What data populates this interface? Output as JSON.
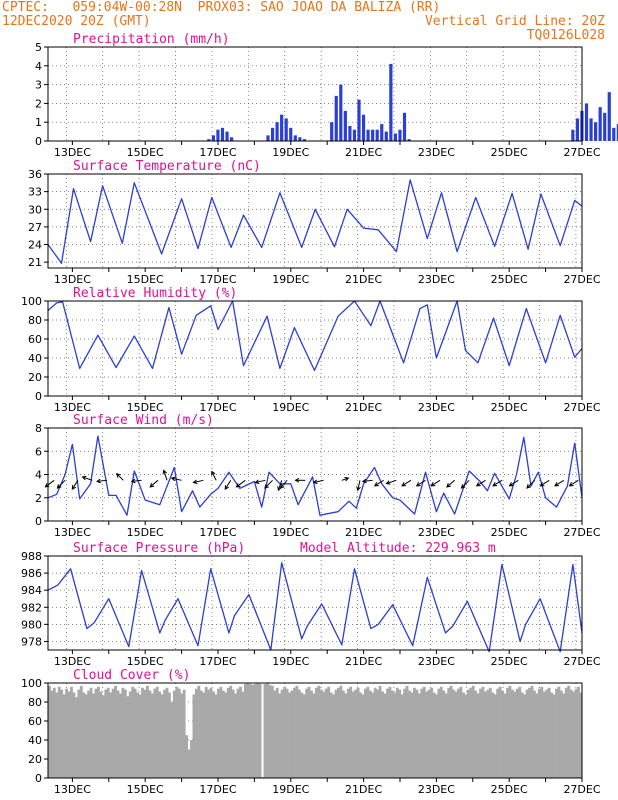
{
  "header": {
    "line1_left": "CPTEC:   059:04W-00:28N  PROX03: SAO JOAO DA BALIZA (RR)",
    "line2_left": "12DEC2020 20Z (GMT)",
    "line2_right": "Vertical Grid Line: 20Z",
    "line3_right": "TQ0126L028"
  },
  "colors": {
    "header": "#e8751a",
    "title": "#e0109a",
    "series": "#2a3fd6",
    "cloud": "#a9a9a9",
    "wind_arrow": "#000000"
  },
  "x_tick_labels": [
    "13DEC",
    "15DEC",
    "17DEC",
    "19DEC",
    "21DEC",
    "23DEC",
    "25DEC",
    "27DEC"
  ],
  "chart_data": [
    {
      "id": "precip",
      "type": "bar",
      "title": "Precipitation (mm/h)",
      "ylim": [
        0,
        5
      ],
      "yticks": [
        0,
        1,
        2,
        3,
        4,
        5
      ],
      "x_start_day": 12.33,
      "x_end_day": 27.0,
      "step_days": 0.125,
      "values": [
        0,
        0,
        0,
        0,
        0,
        0,
        0,
        0,
        0,
        0,
        0,
        0,
        0,
        0,
        0,
        0,
        0,
        0,
        0,
        0,
        0,
        0,
        0,
        0,
        0,
        0,
        0,
        0,
        0,
        0,
        0,
        0,
        0,
        0,
        0,
        0.1,
        0.3,
        0.6,
        0.7,
        0.5,
        0.2,
        0,
        0,
        0,
        0,
        0,
        0,
        0,
        0.3,
        0.7,
        1.0,
        1.4,
        1.2,
        0.7,
        0.3,
        0.2,
        0.1,
        0,
        0,
        0,
        0,
        0,
        1.0,
        2.4,
        3.0,
        1.6,
        0.8,
        0.6,
        2.2,
        1.4,
        0.6,
        0.6,
        0.6,
        0.9,
        0.5,
        4.1,
        0.4,
        0.6,
        1.5,
        0.1,
        0,
        0,
        0,
        0,
        0,
        0,
        0,
        0,
        0,
        0,
        0,
        0,
        0,
        0,
        0,
        0,
        0,
        0,
        0,
        0,
        0,
        0,
        0,
        0,
        0,
        0,
        0,
        0,
        0,
        0,
        0,
        0,
        0,
        0,
        0,
        0.6,
        1.2,
        1.6,
        2.0,
        1.2,
        1.0,
        1.8,
        1.5,
        2.6,
        0.7,
        0.9,
        0.8,
        0.4,
        2.1,
        4.1,
        2.0,
        3.0,
        1.8,
        1.2,
        0.8,
        0.2,
        0,
        0,
        0,
        0,
        0,
        0,
        0,
        0,
        0,
        0,
        0,
        0,
        1.2,
        0.6,
        1.0,
        0.4,
        0.3,
        0.2,
        0.2,
        0.3,
        0.5,
        0.4,
        0.5,
        0.6,
        0.7,
        0.9,
        1.8,
        1.0,
        0.7,
        0.2,
        0.1,
        0,
        0,
        0,
        0,
        0,
        0,
        0,
        0,
        0,
        0,
        0,
        0,
        0,
        0,
        0,
        0,
        0.4,
        0.7,
        0.9,
        0.3,
        0,
        0,
        0,
        0,
        0,
        0,
        0,
        0,
        0,
        0,
        0,
        0,
        0,
        0,
        0,
        0.1
      ]
    },
    {
      "id": "temp",
      "type": "line",
      "title": "Surface Temperature (nC)",
      "ylim": [
        20,
        36
      ],
      "yticks": [
        21,
        24,
        27,
        30,
        33,
        36
      ],
      "points": [
        [
          12.33,
          24.0
        ],
        [
          12.7,
          20.8
        ],
        [
          13.03,
          33.5
        ],
        [
          13.5,
          24.5
        ],
        [
          13.83,
          34.0
        ],
        [
          14.37,
          24.2
        ],
        [
          14.7,
          34.5
        ],
        [
          15.45,
          22.4
        ],
        [
          16.0,
          31.8
        ],
        [
          16.45,
          23.3
        ],
        [
          16.83,
          32.0
        ],
        [
          17.36,
          23.5
        ],
        [
          17.7,
          29.0
        ],
        [
          18.2,
          23.5
        ],
        [
          18.7,
          32.8
        ],
        [
          19.3,
          23.5
        ],
        [
          19.67,
          30.0
        ],
        [
          20.2,
          23.6
        ],
        [
          20.55,
          30.0
        ],
        [
          21.0,
          26.8
        ],
        [
          21.4,
          26.5
        ],
        [
          21.9,
          22.8
        ],
        [
          22.28,
          35.0
        ],
        [
          22.75,
          25.0
        ],
        [
          23.14,
          32.8
        ],
        [
          23.57,
          22.8
        ],
        [
          24.08,
          32.0
        ],
        [
          24.6,
          23.7
        ],
        [
          25.08,
          32.7
        ],
        [
          25.52,
          23.2
        ],
        [
          25.87,
          32.6
        ],
        [
          26.4,
          23.8
        ],
        [
          26.8,
          31.5
        ],
        [
          27.0,
          30.5
        ]
      ]
    },
    {
      "id": "rh",
      "type": "line",
      "title": "Relative Humidity (%)",
      "ylim": [
        0,
        100
      ],
      "yticks": [
        0,
        20,
        40,
        60,
        80,
        100
      ],
      "points": [
        [
          12.33,
          90
        ],
        [
          12.57,
          98
        ],
        [
          12.73,
          99
        ],
        [
          13.2,
          29
        ],
        [
          13.7,
          64
        ],
        [
          14.2,
          30
        ],
        [
          14.7,
          63
        ],
        [
          15.2,
          29
        ],
        [
          15.65,
          93
        ],
        [
          16.0,
          44
        ],
        [
          16.4,
          85
        ],
        [
          16.8,
          95
        ],
        [
          17.0,
          70
        ],
        [
          17.4,
          100
        ],
        [
          17.7,
          32
        ],
        [
          18.35,
          84
        ],
        [
          18.7,
          29
        ],
        [
          19.1,
          72
        ],
        [
          19.65,
          27
        ],
        [
          20.3,
          84
        ],
        [
          20.75,
          100
        ],
        [
          21.2,
          74
        ],
        [
          21.45,
          100
        ],
        [
          22.1,
          35
        ],
        [
          22.55,
          92
        ],
        [
          22.75,
          96
        ],
        [
          23.0,
          40
        ],
        [
          23.57,
          100
        ],
        [
          23.8,
          48
        ],
        [
          24.14,
          35
        ],
        [
          24.57,
          82
        ],
        [
          25.0,
          32
        ],
        [
          25.47,
          92
        ],
        [
          26.0,
          35
        ],
        [
          26.4,
          85
        ],
        [
          26.8,
          41
        ],
        [
          27.0,
          50
        ]
      ]
    },
    {
      "id": "wind",
      "type": "line",
      "title": "Surface Wind (m/s)",
      "ylim": [
        0,
        8
      ],
      "yticks": [
        0,
        2,
        4,
        6,
        8
      ],
      "points": [
        [
          12.33,
          2.0
        ],
        [
          12.57,
          2.3
        ],
        [
          12.8,
          4.0
        ],
        [
          13.0,
          6.6
        ],
        [
          13.2,
          1.9
        ],
        [
          13.5,
          3.2
        ],
        [
          13.7,
          7.3
        ],
        [
          14.0,
          2.2
        ],
        [
          14.2,
          2.2
        ],
        [
          14.5,
          0.5
        ],
        [
          14.7,
          4.3
        ],
        [
          15.0,
          1.8
        ],
        [
          15.4,
          1.4
        ],
        [
          15.8,
          4.6
        ],
        [
          16.0,
          0.8
        ],
        [
          16.3,
          2.6
        ],
        [
          16.5,
          1.2
        ],
        [
          16.8,
          2.3
        ],
        [
          17.0,
          2.8
        ],
        [
          17.3,
          4.2
        ],
        [
          17.6,
          2.8
        ],
        [
          18.0,
          3.4
        ],
        [
          18.2,
          1.2
        ],
        [
          18.4,
          4.2
        ],
        [
          18.7,
          3.2
        ],
        [
          19.0,
          3.2
        ],
        [
          19.2,
          1.4
        ],
        [
          19.6,
          3.8
        ],
        [
          19.8,
          0.5
        ],
        [
          20.3,
          0.8
        ],
        [
          20.6,
          1.7
        ],
        [
          20.8,
          1.1
        ],
        [
          21.0,
          3.2
        ],
        [
          21.3,
          4.6
        ],
        [
          21.5,
          3.2
        ],
        [
          21.8,
          2.0
        ],
        [
          22.0,
          1.8
        ],
        [
          22.4,
          0.6
        ],
        [
          22.7,
          4.2
        ],
        [
          23.0,
          0.8
        ],
        [
          23.2,
          2.4
        ],
        [
          23.5,
          0.6
        ],
        [
          23.9,
          4.3
        ],
        [
          24.2,
          3.4
        ],
        [
          24.4,
          2.6
        ],
        [
          24.6,
          4.1
        ],
        [
          25.0,
          1.9
        ],
        [
          25.2,
          4.0
        ],
        [
          25.4,
          7.2
        ],
        [
          25.6,
          3.0
        ],
        [
          25.8,
          4.2
        ],
        [
          26.0,
          2.0
        ],
        [
          26.3,
          1.2
        ],
        [
          26.6,
          3.0
        ],
        [
          26.8,
          6.7
        ],
        [
          27.0,
          2.0
        ]
      ],
      "arrow_y": 3.5,
      "arrows": [
        [
          12.5,
          -0.8,
          -0.6
        ],
        [
          12.8,
          -0.7,
          -0.7
        ],
        [
          13.15,
          -0.5,
          -0.8
        ],
        [
          13.55,
          -0.9,
          0.3
        ],
        [
          13.95,
          -0.9,
          -0.1
        ],
        [
          14.4,
          -0.6,
          0.6
        ],
        [
          14.9,
          -0.9,
          -0.1
        ],
        [
          15.35,
          -0.7,
          -0.6
        ],
        [
          15.6,
          -0.3,
          0.9
        ],
        [
          16.0,
          -0.9,
          0.2
        ],
        [
          16.6,
          -0.9,
          -0.2
        ],
        [
          16.95,
          -0.4,
          0.8
        ],
        [
          17.35,
          -0.5,
          -0.8
        ],
        [
          17.75,
          -0.8,
          -0.6
        ],
        [
          18.3,
          -0.9,
          -0.2
        ],
        [
          18.5,
          -0.7,
          -0.7
        ],
        [
          18.75,
          -0.3,
          -0.9
        ],
        [
          18.9,
          -0.6,
          -0.7
        ],
        [
          19.4,
          -0.9,
          0.0
        ],
        [
          19.9,
          -0.9,
          -0.2
        ],
        [
          20.4,
          0.6,
          0.2
        ],
        [
          20.9,
          -0.2,
          -0.9
        ],
        [
          21.25,
          -0.9,
          -0.1
        ],
        [
          21.55,
          -0.8,
          -0.5
        ],
        [
          21.9,
          -0.9,
          -0.3
        ],
        [
          22.3,
          -0.8,
          -0.5
        ],
        [
          22.7,
          -0.8,
          -0.5
        ],
        [
          23.1,
          -0.8,
          -0.5
        ],
        [
          23.5,
          -0.7,
          -0.6
        ],
        [
          23.9,
          -0.7,
          -0.7
        ],
        [
          24.35,
          -0.8,
          -0.5
        ],
        [
          24.8,
          -0.8,
          -0.5
        ],
        [
          25.25,
          -0.8,
          -0.5
        ],
        [
          25.7,
          -0.7,
          -0.7
        ],
        [
          26.1,
          -0.8,
          -0.5
        ],
        [
          26.5,
          -0.8,
          -0.5
        ],
        [
          26.9,
          -0.8,
          -0.5
        ]
      ]
    },
    {
      "id": "press",
      "type": "line",
      "title": "Surface Pressure (hPa)",
      "ylim": [
        977,
        988
      ],
      "yticks": [
        978,
        980,
        982,
        984,
        986,
        988
      ],
      "points": [
        [
          12.33,
          984.0
        ],
        [
          12.6,
          984.6
        ],
        [
          12.95,
          986.5
        ],
        [
          13.4,
          979.5
        ],
        [
          13.6,
          980.2
        ],
        [
          14.0,
          983.0
        ],
        [
          14.55,
          977.4
        ],
        [
          14.9,
          986.3
        ],
        [
          15.4,
          979.0
        ],
        [
          15.55,
          980.5
        ],
        [
          15.9,
          983.0
        ],
        [
          16.45,
          977.5
        ],
        [
          16.8,
          986.5
        ],
        [
          17.3,
          979.0
        ],
        [
          17.45,
          981.0
        ],
        [
          17.85,
          983.5
        ],
        [
          18.45,
          977.0
        ],
        [
          18.75,
          987.2
        ],
        [
          19.3,
          978.3
        ],
        [
          19.45,
          979.8
        ],
        [
          19.85,
          982.4
        ],
        [
          20.4,
          977.6
        ],
        [
          20.75,
          986.5
        ],
        [
          21.2,
          979.5
        ],
        [
          21.4,
          980.0
        ],
        [
          21.8,
          982.3
        ],
        [
          22.35,
          977.5
        ],
        [
          22.75,
          985.5
        ],
        [
          23.25,
          979.0
        ],
        [
          23.45,
          979.8
        ],
        [
          23.85,
          982.7
        ],
        [
          24.45,
          976.8
        ],
        [
          24.8,
          987.0
        ],
        [
          25.3,
          978.0
        ],
        [
          25.45,
          980.0
        ],
        [
          25.85,
          983.0
        ],
        [
          26.4,
          976.8
        ],
        [
          26.75,
          987.0
        ],
        [
          27.0,
          979.0
        ]
      ]
    },
    {
      "id": "cloud",
      "type": "area",
      "title": "Cloud Cover (%)",
      "ylim": [
        0,
        100
      ],
      "yticks": [
        0,
        20,
        40,
        60,
        80,
        100
      ],
      "x_start_day": 12.33,
      "x_end_day": 27.0,
      "values": [
        97,
        92,
        95,
        90,
        96,
        93,
        88,
        94,
        91,
        96,
        90,
        85,
        93,
        97,
        90,
        88,
        92,
        95,
        89,
        94,
        96,
        91,
        87,
        93,
        95,
        90,
        94,
        97,
        92,
        89,
        95,
        93,
        86,
        91,
        96,
        94,
        90,
        88,
        95,
        93,
        97,
        92,
        89,
        94,
        96,
        91,
        88,
        93,
        95,
        90,
        80,
        92,
        96,
        94,
        89,
        93,
        45,
        30,
        40,
        88,
        94,
        97,
        92,
        90,
        96,
        93,
        95,
        91,
        88,
        94,
        96,
        92,
        90,
        95,
        97,
        93,
        89,
        94,
        96,
        91,
        99,
        100,
        99,
        98,
        99,
        100,
        99,
        1,
        99,
        100,
        98,
        97,
        92,
        95,
        89,
        93,
        96,
        94,
        90,
        92,
        95,
        97,
        93,
        90,
        88,
        94,
        96,
        92,
        89,
        95,
        97,
        93,
        91,
        94,
        96,
        90,
        88,
        93,
        95,
        97,
        92,
        89,
        94,
        96,
        91,
        93,
        95,
        90,
        88,
        94,
        96,
        92,
        90,
        95,
        93,
        97,
        91,
        89,
        94,
        96,
        92,
        90,
        95,
        93,
        88,
        94,
        97,
        92,
        90,
        95,
        93,
        89,
        94,
        96,
        91,
        93,
        95,
        90,
        88,
        94,
        96,
        92,
        89,
        95,
        97,
        93,
        91,
        94,
        96,
        90,
        88,
        93,
        95,
        97,
        92,
        89,
        94,
        96,
        91,
        93,
        95,
        90,
        88,
        94,
        96,
        92,
        89,
        95,
        97,
        93,
        91,
        94,
        96,
        90,
        88,
        93,
        95,
        97,
        92,
        89,
        94,
        96,
        91,
        93,
        95,
        90,
        88,
        94,
        96,
        92,
        89,
        95,
        97,
        93,
        91,
        94,
        96,
        90
      ]
    },
    {
      "id": "model_altitude",
      "type": "annotation",
      "label": "Model Altitude:",
      "value": "229.963",
      "unit": "m"
    }
  ]
}
